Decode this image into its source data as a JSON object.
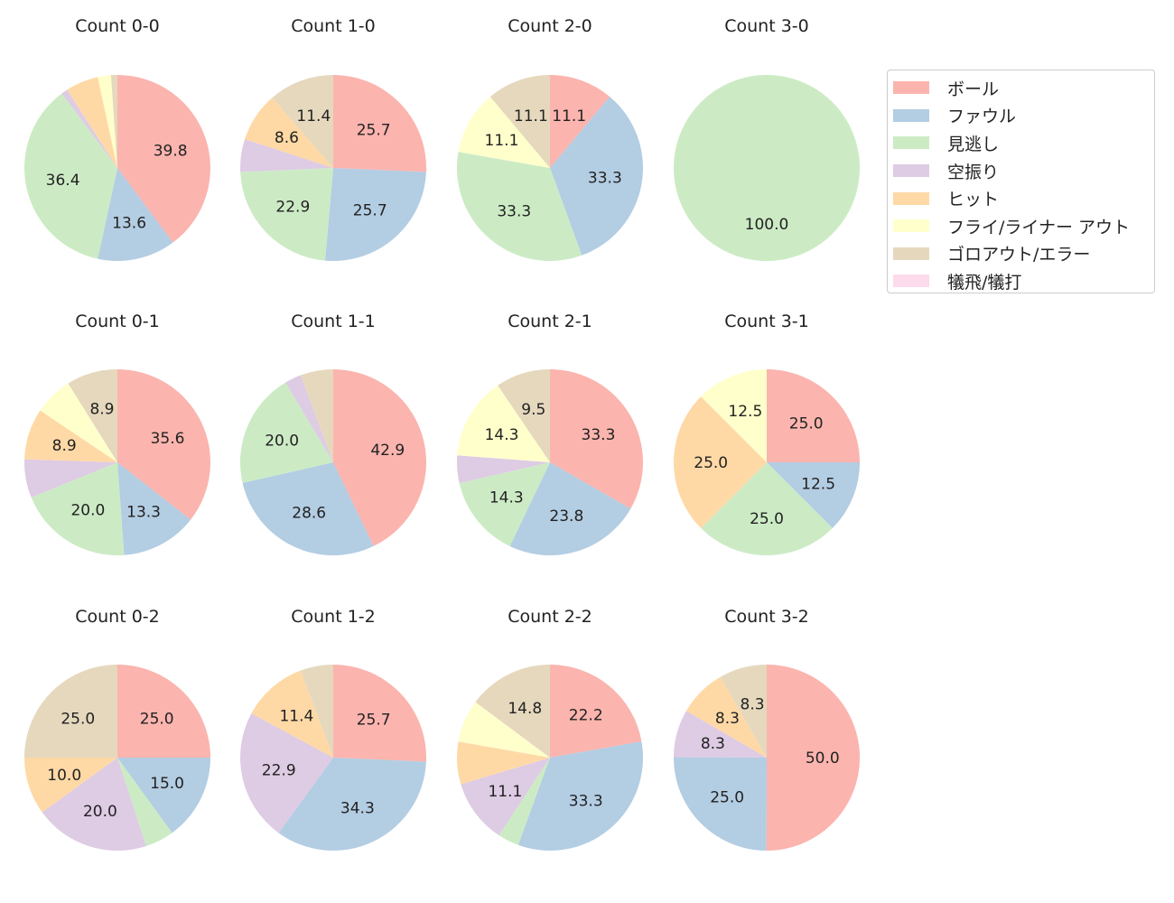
{
  "chart_data": {
    "type": "pie",
    "legend": {
      "placement": "top-right",
      "entries": [
        "ボール",
        "ファウル",
        "見逃し",
        "空振り",
        "ヒット",
        "フライ/ライナー アウト",
        "ゴロアウト/エラー",
        "犠飛/犠打"
      ]
    },
    "colors": [
      "#fbb4ae",
      "#b3cde3",
      "#ccebc5",
      "#decbe4",
      "#fed9a6",
      "#ffffcc",
      "#e5d8bd",
      "#fddaec"
    ],
    "pies": [
      {
        "title": "Count 0-0",
        "values": [
          39.8,
          13.6,
          36.4,
          1.1,
          5.7,
          2.3,
          1.1,
          0
        ]
      },
      {
        "title": "Count 1-0",
        "values": [
          25.7,
          25.7,
          22.9,
          5.7,
          8.6,
          0,
          11.4,
          0
        ]
      },
      {
        "title": "Count 2-0",
        "values": [
          11.1,
          33.3,
          33.3,
          0,
          0,
          11.1,
          11.1,
          0
        ]
      },
      {
        "title": "Count 3-0",
        "values": [
          0,
          0,
          100.0,
          0,
          0,
          0,
          0,
          0
        ]
      },
      {
        "title": "Count 0-1",
        "values": [
          35.6,
          13.3,
          20.0,
          6.7,
          8.9,
          6.7,
          8.9,
          0
        ]
      },
      {
        "title": "Count 1-1",
        "values": [
          42.9,
          28.6,
          20.0,
          2.9,
          0,
          0,
          5.7,
          0
        ]
      },
      {
        "title": "Count 2-1",
        "values": [
          33.3,
          23.8,
          14.3,
          4.8,
          0,
          14.3,
          9.5,
          0
        ]
      },
      {
        "title": "Count 3-1",
        "values": [
          25.0,
          12.5,
          25.0,
          0,
          25.0,
          12.5,
          0,
          0
        ]
      },
      {
        "title": "Count 0-2",
        "values": [
          25.0,
          15.0,
          5.0,
          20.0,
          10.0,
          0,
          25.0,
          0
        ]
      },
      {
        "title": "Count 1-2",
        "values": [
          25.7,
          34.3,
          0,
          22.9,
          11.4,
          0,
          5.7,
          0
        ]
      },
      {
        "title": "Count 2-2",
        "values": [
          22.2,
          33.3,
          3.7,
          11.1,
          7.4,
          7.4,
          14.8,
          0
        ]
      },
      {
        "title": "Count 3-2",
        "values": [
          50.0,
          25.0,
          0,
          8.3,
          8.3,
          0,
          8.3,
          0
        ]
      }
    ]
  }
}
